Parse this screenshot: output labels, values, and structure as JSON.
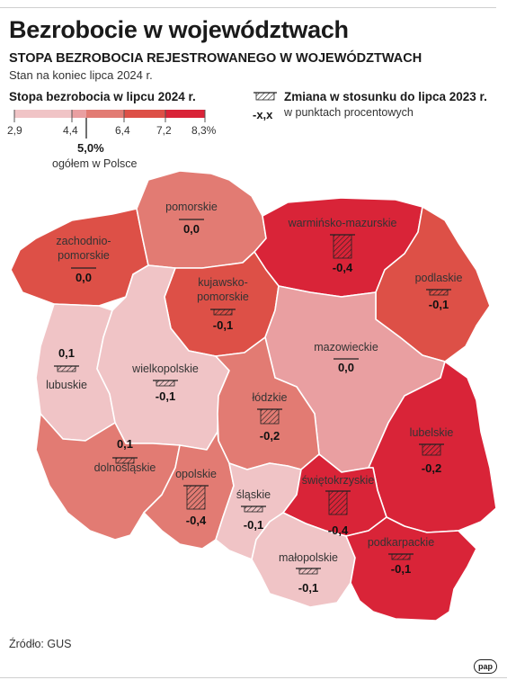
{
  "title": "Bezrobocie w województwach",
  "subtitle": "STOPA BEZROBOCIA REJESTROWANEGO W WOJEWÓDZTWACH",
  "subtitle2": "Stan na koniec lipca 2024 r.",
  "legend": {
    "title": "Stopa bezrobocia w lipcu 2024 r.",
    "ticks": [
      "2,9",
      "4,4",
      "6,4",
      "7,2",
      "8,3%"
    ],
    "colors": [
      "#f0c4c6",
      "#e99fa1",
      "#e27b73",
      "#dd5047",
      "#d92438"
    ],
    "average_value": "5,0%",
    "average_label": "ogółem w Polsce"
  },
  "change_legend": {
    "title": "Zmiana w stosunku do lipca 2023  r.",
    "sample": "-x,x",
    "unit": "w punktach procentowych"
  },
  "regions": [
    {
      "name": "zachodnio-",
      "name2": "pomorskie",
      "change": "0,0",
      "color": "#dd5047"
    },
    {
      "name": "pomorskie",
      "change": "0,0",
      "color": "#e27b73"
    },
    {
      "name": "warmińsko-mazurskie",
      "change": "-0,4",
      "color": "#d92438"
    },
    {
      "name": "podlaskie",
      "change": "-0,1",
      "color": "#dd5047"
    },
    {
      "name": "kujawsko-",
      "name2": "pomorskie",
      "change": "-0,1",
      "color": "#dd5047"
    },
    {
      "name": "lubuskie",
      "change": "0,1",
      "color": "#f0c4c6"
    },
    {
      "name": "wielkopolskie",
      "change": "-0,1",
      "color": "#f0c4c6"
    },
    {
      "name": "mazowieckie",
      "change": "0,0",
      "color": "#e99fa1"
    },
    {
      "name": "łódzkie",
      "change": "-0,2",
      "color": "#e27b73"
    },
    {
      "name": "lubelskie",
      "change": "-0,2",
      "color": "#d92438"
    },
    {
      "name": "dolnośląskie",
      "change": "0,1",
      "color": "#e27b73"
    },
    {
      "name": "opolskie",
      "change": "-0,4",
      "color": "#e27b73"
    },
    {
      "name": "śląskie",
      "change": "-0,1",
      "color": "#f0c4c6"
    },
    {
      "name": "świętokrzyskie",
      "change": "-0,4",
      "color": "#d92438"
    },
    {
      "name": "małopolskie",
      "change": "-0,1",
      "color": "#f0c4c6"
    },
    {
      "name": "podkarpackie",
      "change": "-0,1",
      "color": "#d92438"
    }
  ],
  "source": "Źródło: GUS",
  "logo": "pap"
}
